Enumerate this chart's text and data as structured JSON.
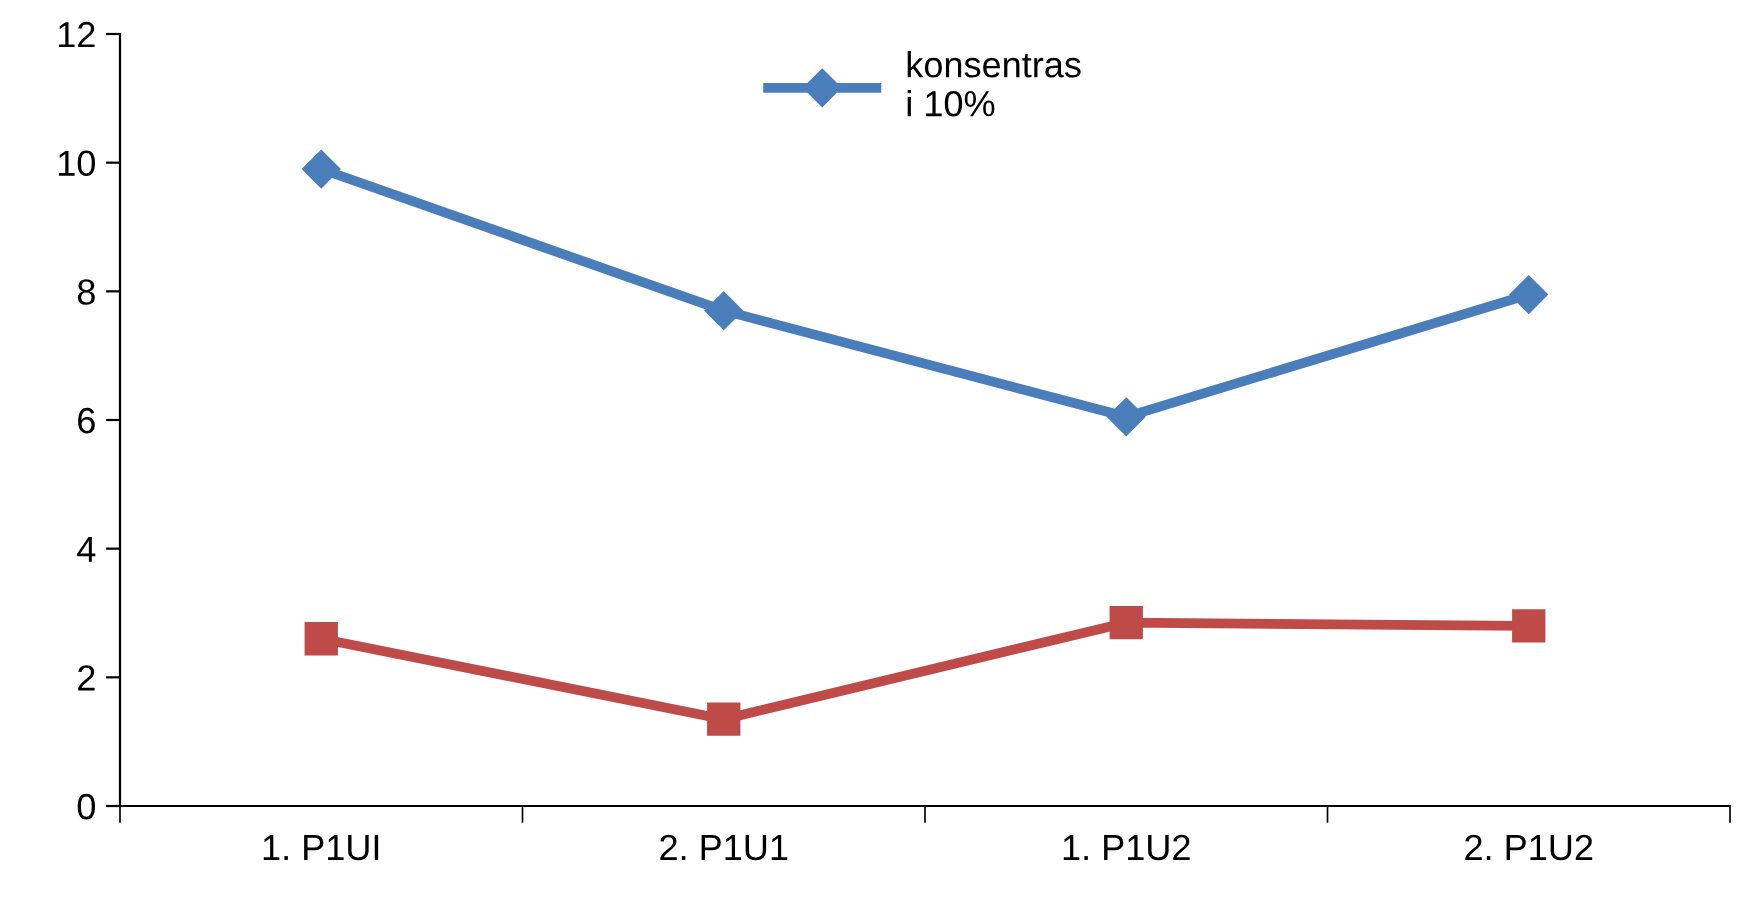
{
  "chart_data": {
    "type": "line",
    "categories": [
      "1. P1UI",
      "2. P1U1",
      "1. P1U2",
      "2. P1U2"
    ],
    "series": [
      {
        "name": "konsentras\ni 10%",
        "color": "#4a7ebb",
        "values": [
          9.9,
          7.7,
          6.05,
          7.95
        ],
        "marker": "diamond"
      },
      {
        "color": "#be4b48",
        "values": [
          2.6,
          1.35,
          2.85,
          2.8
        ],
        "marker": "square"
      }
    ],
    "ylim": [
      0,
      12
    ],
    "yticks": [
      0,
      2,
      4,
      6,
      8,
      10,
      12
    ],
    "grid": false,
    "legend": "top"
  }
}
